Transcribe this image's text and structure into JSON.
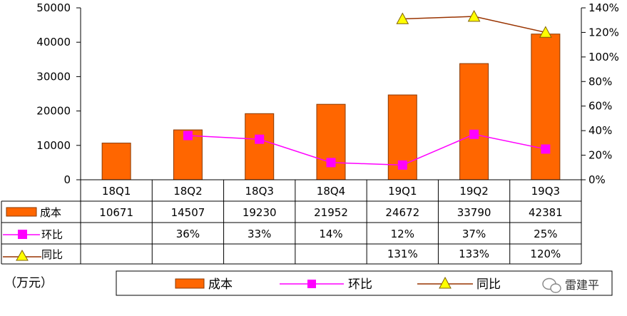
{
  "colors": {
    "bar": "#ff6600",
    "bar_stroke": "#8a3a00",
    "mom_line": "#ff00ff",
    "yoy_line": "#993300",
    "yoy_marker": "#ffff00",
    "grid": "#000000"
  },
  "unit_label": "（万元）",
  "watermark": {
    "text": "雷建平",
    "icon": "wechat-icon"
  },
  "legend": {
    "cost": "成本",
    "mom": "环比",
    "yoy": "同比"
  },
  "table": {
    "row_labels": [
      "成本",
      "环比",
      "同比"
    ],
    "cost": [
      "10671",
      "14507",
      "19230",
      "21952",
      "24672",
      "33790",
      "42381"
    ],
    "mom": [
      "",
      "36%",
      "33%",
      "14%",
      "12%",
      "37%",
      "25%"
    ],
    "yoy": [
      "",
      "",
      "",
      "",
      "131%",
      "133%",
      "120%"
    ]
  },
  "chart_data": {
    "type": "bar",
    "categories": [
      "18Q1",
      "18Q2",
      "18Q3",
      "18Q4",
      "19Q1",
      "19Q2",
      "19Q3"
    ],
    "series": [
      {
        "name": "成本",
        "type": "bar",
        "axis": "left",
        "values": [
          10671,
          14507,
          19230,
          21952,
          24672,
          33790,
          42381
        ]
      },
      {
        "name": "环比",
        "type": "line",
        "axis": "right",
        "marker": "square",
        "values": [
          null,
          36,
          33,
          14,
          12,
          37,
          25
        ]
      },
      {
        "name": "同比",
        "type": "line",
        "axis": "right",
        "marker": "triangle",
        "values": [
          null,
          null,
          null,
          null,
          131,
          133,
          120
        ]
      }
    ],
    "y_left": {
      "min": 0,
      "max": 50000,
      "ticks": [
        0,
        10000,
        20000,
        30000,
        40000,
        50000
      ]
    },
    "y_right": {
      "min": 0,
      "max": 140,
      "ticks": [
        "0%",
        "20%",
        "40%",
        "60%",
        "80%",
        "100%",
        "120%",
        "140%"
      ]
    },
    "grid": false,
    "legend_position": "bottom"
  }
}
